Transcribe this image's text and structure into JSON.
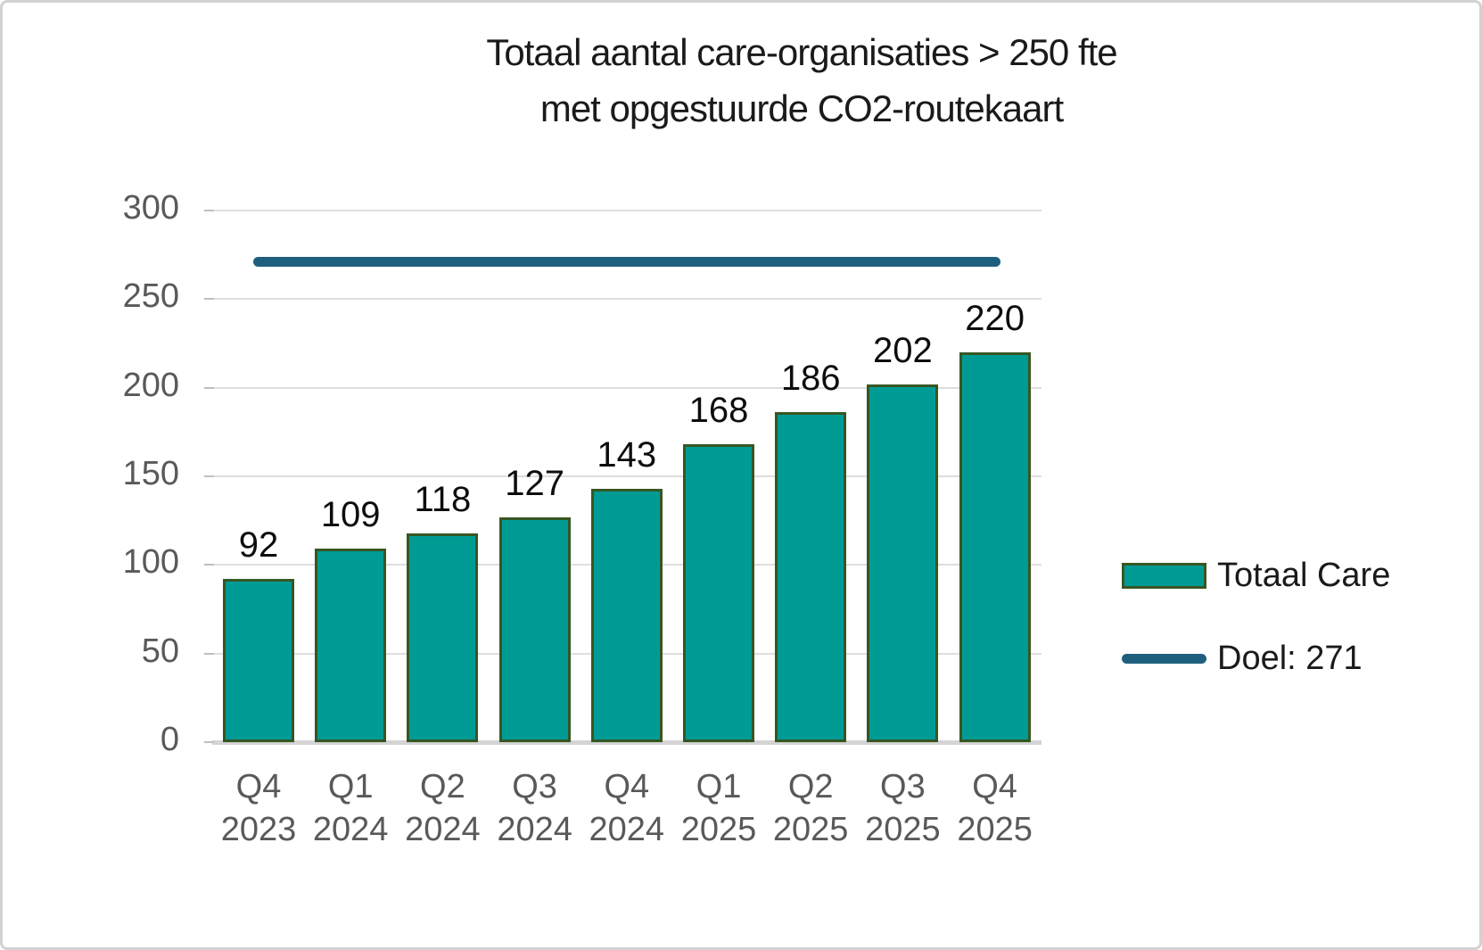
{
  "chart_data": {
    "type": "bar",
    "title_lines": [
      "Totaal aantal care-organisaties > 250 fte",
      "met opgestuurde CO2-routekaart"
    ],
    "categories": [
      {
        "quarter": "Q4",
        "year": "2023"
      },
      {
        "quarter": "Q1",
        "year": "2024"
      },
      {
        "quarter": "Q2",
        "year": "2024"
      },
      {
        "quarter": "Q3",
        "year": "2024"
      },
      {
        "quarter": "Q4",
        "year": "2024"
      },
      {
        "quarter": "Q1",
        "year": "2025"
      },
      {
        "quarter": "Q2",
        "year": "2025"
      },
      {
        "quarter": "Q3",
        "year": "2025"
      },
      {
        "quarter": "Q4",
        "year": "2025"
      }
    ],
    "series": [
      {
        "name": "Totaal Care",
        "type": "bar",
        "values": [
          92,
          109,
          118,
          127,
          143,
          168,
          186,
          202,
          220
        ]
      },
      {
        "name": "Doel: 271",
        "type": "line",
        "value": 271
      }
    ],
    "data_labels_shown": true,
    "ylim": [
      0,
      300
    ],
    "ytick_step": 50,
    "yticks": [
      0,
      50,
      100,
      150,
      200,
      250,
      300
    ],
    "grid": "horizontal",
    "legend_position": "right",
    "colors": {
      "bar_fill": "#009b95",
      "bar_border": "#375623",
      "goal_line": "#1f5f7e",
      "axis_text": "#595959",
      "data_label_text": "#0d0d0d",
      "gridline": "#dedede",
      "title_text": "#1a1a1a"
    }
  }
}
